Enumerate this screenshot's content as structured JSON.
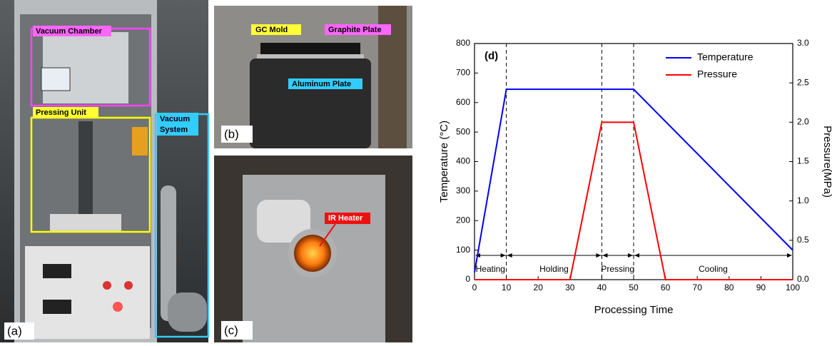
{
  "photos": {
    "a": {
      "label": "(a)",
      "annotations": [
        "Vacuum Chamber",
        "Pressing Unit"
      ],
      "system_lines": [
        "Vacuum",
        "System"
      ]
    },
    "b": {
      "label": "(b)",
      "annotations": [
        "GC Mold",
        "Graphite Plate",
        "Aluminum Plate"
      ]
    },
    "c": {
      "label": "(c)",
      "annotations": [
        "IR Heater"
      ]
    }
  },
  "chart_data": {
    "type": "line",
    "panel_label": "(d)",
    "xlabel": "Processing Time",
    "ylabel": "Temperature (°C)",
    "y2label": "Pressure(MPa)",
    "xlim": [
      0,
      100
    ],
    "xticks": [
      0,
      10,
      20,
      30,
      40,
      50,
      60,
      70,
      80,
      90,
      100
    ],
    "ylim": [
      0,
      800
    ],
    "yticks": [
      0,
      100,
      200,
      300,
      400,
      500,
      600,
      700,
      800
    ],
    "y2lim": [
      0,
      3
    ],
    "y2ticks": [
      {
        "value": 0,
        "label": "0.0"
      },
      {
        "value": 0.5,
        "label": "0.5"
      },
      {
        "value": 1,
        "label": "1.0"
      },
      {
        "value": 1.5,
        "label": "1.5"
      },
      {
        "value": 2,
        "label": "2.0"
      },
      {
        "value": 2.5,
        "label": "2.5"
      },
      {
        "value": 3,
        "label": "3.0"
      }
    ],
    "phases": [
      "Heating",
      "Holding",
      "Pressing",
      "Cooling"
    ],
    "legend": "upper right",
    "series": [
      {
        "name": "Temperature",
        "color": "#0000ff",
        "x": [
          0,
          10,
          50,
          100
        ],
        "values": [
          25,
          645,
          645,
          100
        ]
      },
      {
        "name": "Pressure",
        "color": "#ff0000",
        "axis": "y2",
        "x": [
          0,
          30,
          40,
          50,
          60,
          100
        ],
        "values": [
          0,
          0,
          2,
          2,
          0,
          0
        ]
      }
    ]
  }
}
